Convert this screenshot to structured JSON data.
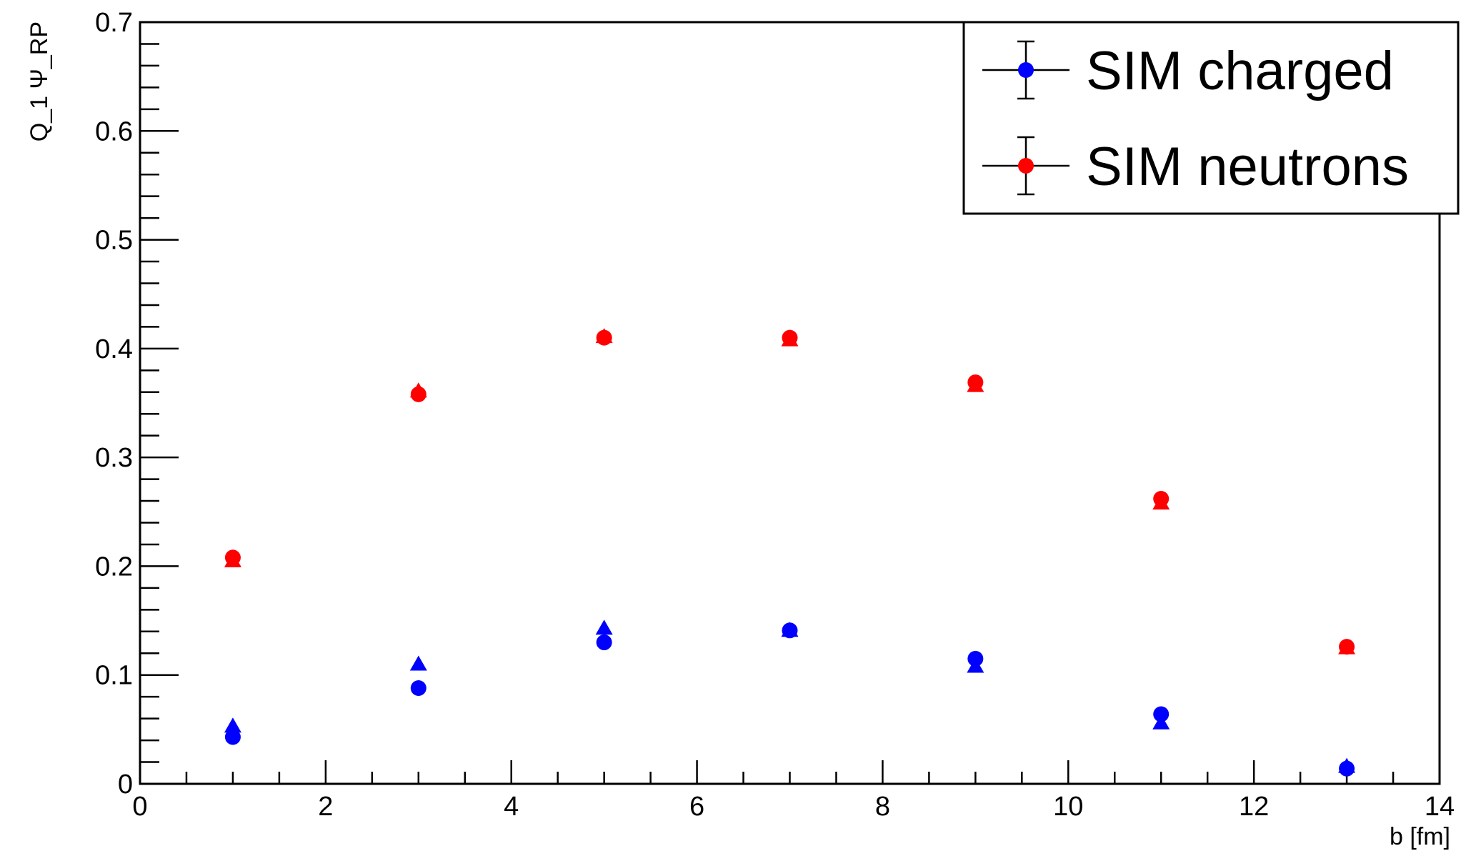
{
  "chart_data": {
    "type": "scatter",
    "title": "",
    "xlabel": "b [fm]",
    "ylabel": "Q_1 Ψ_RP",
    "xlim": [
      0,
      14
    ],
    "ylim": [
      0,
      0.7
    ],
    "x_ticks": [
      0,
      2,
      4,
      6,
      8,
      10,
      12,
      14
    ],
    "x_tick_labels": [
      "0",
      "2",
      "4",
      "6",
      "8",
      "10",
      "12",
      "14"
    ],
    "y_ticks": [
      0,
      0.1,
      0.2,
      0.3,
      0.4,
      0.5,
      0.6,
      0.7
    ],
    "y_tick_labels": [
      "0",
      "0.1",
      "0.2",
      "0.3",
      "0.4",
      "0.5",
      "0.6",
      "0.7"
    ],
    "grid": false,
    "legend_position": "top-right",
    "series": [
      {
        "name": "SIM charged",
        "color": "#0000ff",
        "marker": "circle",
        "x": [
          1,
          3,
          5,
          7,
          9,
          11,
          13
        ],
        "y": [
          0.043,
          0.088,
          0.13,
          0.141,
          0.115,
          0.064,
          0.014
        ]
      },
      {
        "name": "SIM neutrons",
        "color": "#ff0000",
        "marker": "circle",
        "x": [
          1,
          3,
          5,
          7,
          9,
          11,
          13
        ],
        "y": [
          0.208,
          0.358,
          0.41,
          0.41,
          0.369,
          0.262,
          0.126
        ]
      },
      {
        "color": "#0000ff",
        "marker": "triangle",
        "x": [
          1,
          3,
          5,
          7,
          9,
          11,
          13
        ],
        "y": [
          0.053,
          0.11,
          0.143,
          0.141,
          0.108,
          0.056,
          0.016
        ]
      },
      {
        "color": "#ff0000",
        "marker": "triangle",
        "x": [
          1,
          3,
          5,
          7,
          9,
          11,
          13
        ],
        "y": [
          0.205,
          0.361,
          0.411,
          0.408,
          0.366,
          0.258,
          0.125
        ]
      }
    ]
  }
}
